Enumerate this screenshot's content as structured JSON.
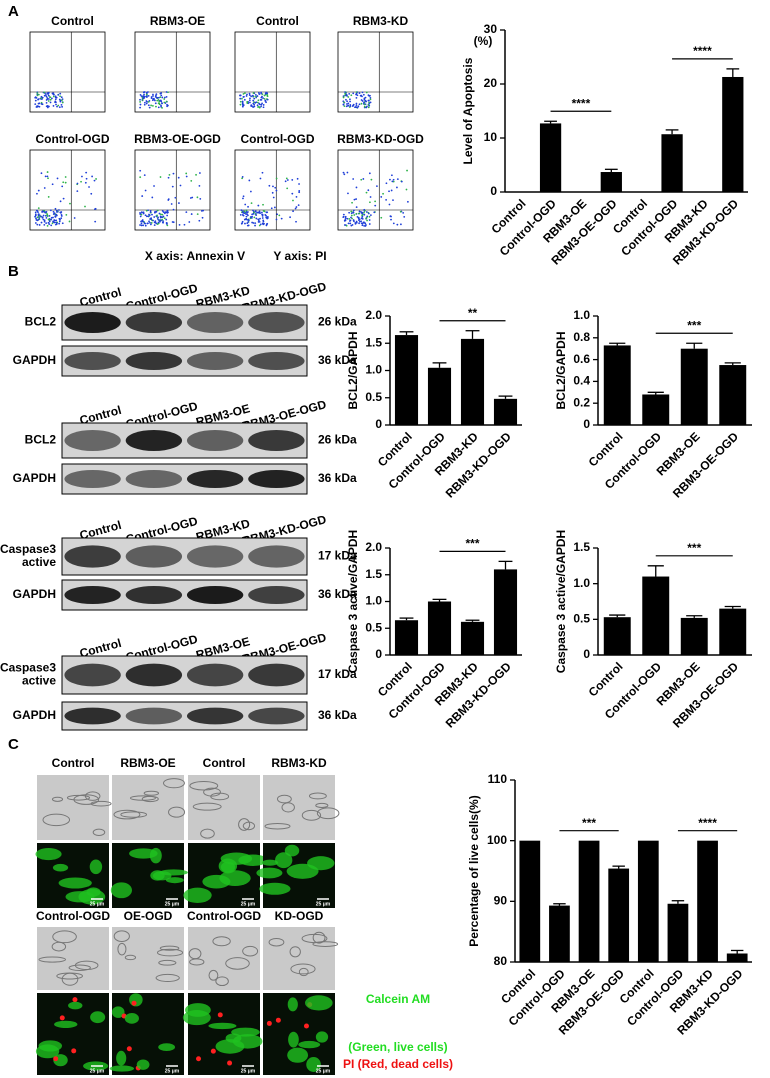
{
  "panel_a": {
    "letter": "A",
    "top_labels": [
      "Control",
      "RBM3-OE",
      "Control",
      "RBM3-KD"
    ],
    "bottom_labels": [
      "Control-OGD",
      "RBM3-OE-OGD",
      "Control-OGD",
      "RBM3-KD-OGD"
    ],
    "x_axis_caption": "X axis: Annexin V",
    "y_axis_caption": "Y axis: PI"
  },
  "panel_b": {
    "letter": "B",
    "blots": [
      {
        "lanes": [
          "Control",
          "Control-OGD",
          "RBM3-KD",
          "RBM3-KD-OGD"
        ],
        "rows": [
          {
            "label": [
              "BCL2"
            ],
            "size": "26 kDa"
          },
          {
            "label": [
              "GAPDH"
            ],
            "size": "36 kDa"
          }
        ]
      },
      {
        "lanes": [
          "Control",
          "Control-OGD",
          "RBM3-OE",
          "RBM3-OE-OGD"
        ],
        "rows": [
          {
            "label": [
              "BCL2"
            ],
            "size": "26 kDa"
          },
          {
            "label": [
              "GAPDH"
            ],
            "size": "36 kDa"
          }
        ]
      },
      {
        "lanes": [
          "Control",
          "Control-OGD",
          "RBM3-KD",
          "RBM3-KD-OGD"
        ],
        "rows": [
          {
            "label": [
              "Caspase3",
              "active"
            ],
            "size": "17 kDa"
          },
          {
            "label": [
              "GAPDH"
            ],
            "size": "36 kDa"
          }
        ]
      },
      {
        "lanes": [
          "Control",
          "Control-OGD",
          "RBM3-OE",
          "RBM3-OE-OGD"
        ],
        "rows": [
          {
            "label": [
              "Caspase3",
              "active"
            ],
            "size": "17 kDa"
          },
          {
            "label": [
              "GAPDH"
            ],
            "size": "36 kDa"
          }
        ]
      }
    ]
  },
  "panel_c": {
    "letter": "C",
    "top_labels": [
      "Control",
      "RBM3-OE",
      "Control",
      "RBM3-KD"
    ],
    "bottom_labels": [
      "Control-OGD",
      "OE-OGD",
      "Control-OGD",
      "KD-OGD"
    ],
    "scale_bar": "25 μm",
    "legend": [
      "Calcein AM",
      "(Green, live cells)",
      "PI (Red, dead cells)"
    ]
  },
  "chart_data": [
    {
      "type": "bar",
      "ylabel": "Level of Apoptosis",
      "y_unit_label": "(%)",
      "categories": [
        "Control",
        "Control-OGD",
        "RBM3-OE",
        "RBM3-OE-OGD",
        "Control",
        "Control-OGD",
        "RBM3-KD",
        "RBM3-KD-OGD"
      ],
      "values": [
        0,
        12.7,
        0,
        3.7,
        0,
        10.7,
        0,
        21.3
      ],
      "errors": [
        null,
        0.4,
        null,
        0.5,
        null,
        0.8,
        null,
        1.5
      ],
      "color": "#000000",
      "ylim": [
        0,
        30
      ],
      "yticks": [
        0,
        10,
        20,
        30
      ],
      "annotations": [
        "****",
        "****"
      ]
    },
    {
      "type": "bar",
      "ylabel": "BCL2/GAPDH",
      "categories": [
        "Control",
        "Control-OGD",
        "RBM3-KD",
        "RBM3-KD-OGD"
      ],
      "values": [
        1.65,
        1.05,
        1.58,
        0.48
      ],
      "errors": [
        0.06,
        0.09,
        0.15,
        0.05
      ],
      "color": "#000000",
      "ylim": [
        0,
        2
      ],
      "yticks": [
        0,
        0.5,
        {
          "value": 1,
          "label": "1.0"
        },
        1.5,
        {
          "value": 2,
          "label": "2.0"
        }
      ],
      "annotations": [
        "**"
      ]
    },
    {
      "type": "bar",
      "ylabel": "BCL2/GAPDH",
      "categories": [
        "Control",
        "Control-OGD",
        "RBM3-OE",
        "RBM3-OE-OGD"
      ],
      "values": [
        0.73,
        0.28,
        0.7,
        0.55
      ],
      "errors": [
        0.02,
        0.02,
        0.05,
        0.02
      ],
      "color": "#000000",
      "ylim": [
        0,
        1
      ],
      "yticks": [
        0,
        0.2,
        0.4,
        0.6,
        0.8,
        {
          "value": 1,
          "label": "1.0"
        }
      ],
      "annotations": [
        "***"
      ]
    },
    {
      "type": "bar",
      "ylabel": "Caspase 3 active/GAPDH",
      "categories": [
        "Control",
        "Control-OGD",
        "RBM3-KD",
        "RBM3-KD-OGD"
      ],
      "values": [
        0.65,
        1.0,
        0.62,
        1.6
      ],
      "errors": [
        0.04,
        0.04,
        0.03,
        0.15
      ],
      "color": "#000000",
      "ylim": [
        0,
        2
      ],
      "yticks": [
        0,
        0.5,
        {
          "value": 1,
          "label": "1.0"
        },
        1.5,
        {
          "value": 2,
          "label": "2.0"
        }
      ],
      "annotations": [
        "***"
      ]
    },
    {
      "type": "bar",
      "ylabel": "Caspase 3 active/GAPDH",
      "categories": [
        "Control",
        "Control-OGD",
        "RBM3-OE",
        "RBM3-OE-OGD"
      ],
      "values": [
        0.53,
        1.1,
        0.52,
        0.65
      ],
      "errors": [
        0.03,
        0.15,
        0.03,
        0.03
      ],
      "color": "#000000",
      "ylim": [
        0,
        1.5
      ],
      "yticks": [
        0,
        0.5,
        {
          "value": 1,
          "label": "1.0"
        },
        1.5
      ],
      "annotations": [
        "***"
      ]
    },
    {
      "type": "bar",
      "ylabel": "Percentage of live cells(%)",
      "categories": [
        "Control",
        "Control-OGD",
        "RBM3-OE",
        "RBM3-OE-OGD",
        "Control",
        "Control-OGD",
        "RBM3-KD",
        "RBM3-KD-OGD"
      ],
      "values": [
        100,
        89.3,
        100,
        95.4,
        100,
        89.6,
        100,
        81.4
      ],
      "errors": [
        null,
        0.3,
        null,
        0.4,
        null,
        0.5,
        null,
        0.5
      ],
      "color": "#000000",
      "ylim": [
        80,
        110
      ],
      "yticks": [
        80,
        90,
        100,
        110
      ],
      "annotations": [
        "***",
        "****"
      ]
    }
  ]
}
